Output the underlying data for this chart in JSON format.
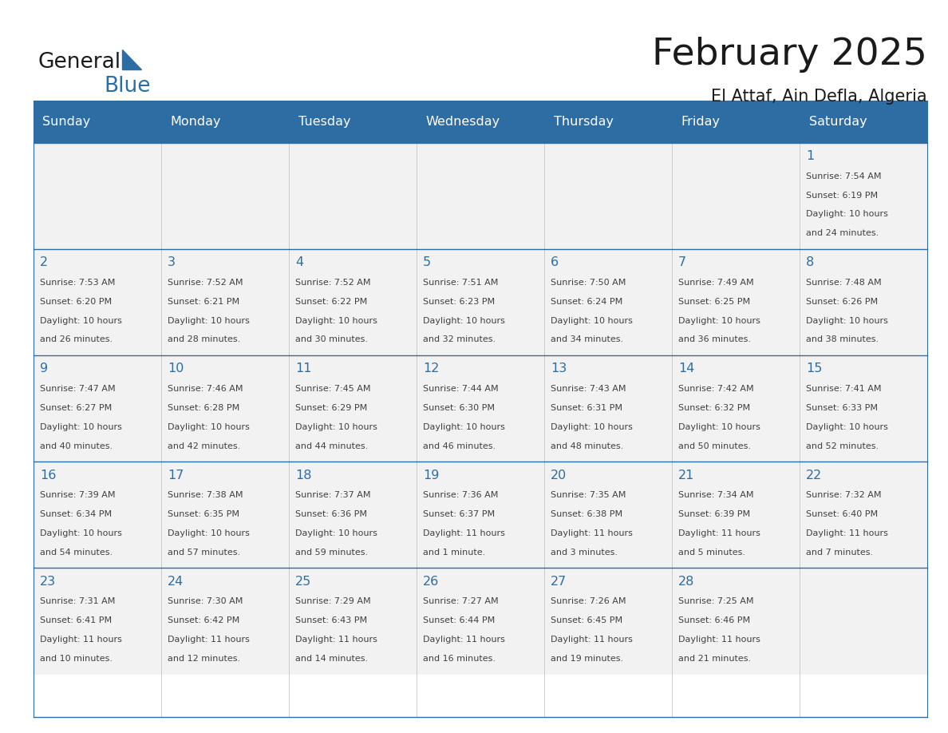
{
  "title": "February 2025",
  "subtitle": "El Attaf, Ain Defla, Algeria",
  "header_bg": "#2E6DA4",
  "header_text_color": "#FFFFFF",
  "day_number_color": "#2E6DA4",
  "info_text_color": "#404040",
  "border_color": "#2E6DA4",
  "days_of_week": [
    "Sunday",
    "Monday",
    "Tuesday",
    "Wednesday",
    "Thursday",
    "Friday",
    "Saturday"
  ],
  "weeks": [
    [
      {
        "day": null,
        "sunrise": null,
        "sunset": null,
        "daylight_line1": null,
        "daylight_line2": null
      },
      {
        "day": null,
        "sunrise": null,
        "sunset": null,
        "daylight_line1": null,
        "daylight_line2": null
      },
      {
        "day": null,
        "sunrise": null,
        "sunset": null,
        "daylight_line1": null,
        "daylight_line2": null
      },
      {
        "day": null,
        "sunrise": null,
        "sunset": null,
        "daylight_line1": null,
        "daylight_line2": null
      },
      {
        "day": null,
        "sunrise": null,
        "sunset": null,
        "daylight_line1": null,
        "daylight_line2": null
      },
      {
        "day": null,
        "sunrise": null,
        "sunset": null,
        "daylight_line1": null,
        "daylight_line2": null
      },
      {
        "day": 1,
        "sunrise": "7:54 AM",
        "sunset": "6:19 PM",
        "daylight_line1": "Daylight: 10 hours",
        "daylight_line2": "and 24 minutes."
      }
    ],
    [
      {
        "day": 2,
        "sunrise": "7:53 AM",
        "sunset": "6:20 PM",
        "daylight_line1": "Daylight: 10 hours",
        "daylight_line2": "and 26 minutes."
      },
      {
        "day": 3,
        "sunrise": "7:52 AM",
        "sunset": "6:21 PM",
        "daylight_line1": "Daylight: 10 hours",
        "daylight_line2": "and 28 minutes."
      },
      {
        "day": 4,
        "sunrise": "7:52 AM",
        "sunset": "6:22 PM",
        "daylight_line1": "Daylight: 10 hours",
        "daylight_line2": "and 30 minutes."
      },
      {
        "day": 5,
        "sunrise": "7:51 AM",
        "sunset": "6:23 PM",
        "daylight_line1": "Daylight: 10 hours",
        "daylight_line2": "and 32 minutes."
      },
      {
        "day": 6,
        "sunrise": "7:50 AM",
        "sunset": "6:24 PM",
        "daylight_line1": "Daylight: 10 hours",
        "daylight_line2": "and 34 minutes."
      },
      {
        "day": 7,
        "sunrise": "7:49 AM",
        "sunset": "6:25 PM",
        "daylight_line1": "Daylight: 10 hours",
        "daylight_line2": "and 36 minutes."
      },
      {
        "day": 8,
        "sunrise": "7:48 AM",
        "sunset": "6:26 PM",
        "daylight_line1": "Daylight: 10 hours",
        "daylight_line2": "and 38 minutes."
      }
    ],
    [
      {
        "day": 9,
        "sunrise": "7:47 AM",
        "sunset": "6:27 PM",
        "daylight_line1": "Daylight: 10 hours",
        "daylight_line2": "and 40 minutes."
      },
      {
        "day": 10,
        "sunrise": "7:46 AM",
        "sunset": "6:28 PM",
        "daylight_line1": "Daylight: 10 hours",
        "daylight_line2": "and 42 minutes."
      },
      {
        "day": 11,
        "sunrise": "7:45 AM",
        "sunset": "6:29 PM",
        "daylight_line1": "Daylight: 10 hours",
        "daylight_line2": "and 44 minutes."
      },
      {
        "day": 12,
        "sunrise": "7:44 AM",
        "sunset": "6:30 PM",
        "daylight_line1": "Daylight: 10 hours",
        "daylight_line2": "and 46 minutes."
      },
      {
        "day": 13,
        "sunrise": "7:43 AM",
        "sunset": "6:31 PM",
        "daylight_line1": "Daylight: 10 hours",
        "daylight_line2": "and 48 minutes."
      },
      {
        "day": 14,
        "sunrise": "7:42 AM",
        "sunset": "6:32 PM",
        "daylight_line1": "Daylight: 10 hours",
        "daylight_line2": "and 50 minutes."
      },
      {
        "day": 15,
        "sunrise": "7:41 AM",
        "sunset": "6:33 PM",
        "daylight_line1": "Daylight: 10 hours",
        "daylight_line2": "and 52 minutes."
      }
    ],
    [
      {
        "day": 16,
        "sunrise": "7:39 AM",
        "sunset": "6:34 PM",
        "daylight_line1": "Daylight: 10 hours",
        "daylight_line2": "and 54 minutes."
      },
      {
        "day": 17,
        "sunrise": "7:38 AM",
        "sunset": "6:35 PM",
        "daylight_line1": "Daylight: 10 hours",
        "daylight_line2": "and 57 minutes."
      },
      {
        "day": 18,
        "sunrise": "7:37 AM",
        "sunset": "6:36 PM",
        "daylight_line1": "Daylight: 10 hours",
        "daylight_line2": "and 59 minutes."
      },
      {
        "day": 19,
        "sunrise": "7:36 AM",
        "sunset": "6:37 PM",
        "daylight_line1": "Daylight: 11 hours",
        "daylight_line2": "and 1 minute."
      },
      {
        "day": 20,
        "sunrise": "7:35 AM",
        "sunset": "6:38 PM",
        "daylight_line1": "Daylight: 11 hours",
        "daylight_line2": "and 3 minutes."
      },
      {
        "day": 21,
        "sunrise": "7:34 AM",
        "sunset": "6:39 PM",
        "daylight_line1": "Daylight: 11 hours",
        "daylight_line2": "and 5 minutes."
      },
      {
        "day": 22,
        "sunrise": "7:32 AM",
        "sunset": "6:40 PM",
        "daylight_line1": "Daylight: 11 hours",
        "daylight_line2": "and 7 minutes."
      }
    ],
    [
      {
        "day": 23,
        "sunrise": "7:31 AM",
        "sunset": "6:41 PM",
        "daylight_line1": "Daylight: 11 hours",
        "daylight_line2": "and 10 minutes."
      },
      {
        "day": 24,
        "sunrise": "7:30 AM",
        "sunset": "6:42 PM",
        "daylight_line1": "Daylight: 11 hours",
        "daylight_line2": "and 12 minutes."
      },
      {
        "day": 25,
        "sunrise": "7:29 AM",
        "sunset": "6:43 PM",
        "daylight_line1": "Daylight: 11 hours",
        "daylight_line2": "and 14 minutes."
      },
      {
        "day": 26,
        "sunrise": "7:27 AM",
        "sunset": "6:44 PM",
        "daylight_line1": "Daylight: 11 hours",
        "daylight_line2": "and 16 minutes."
      },
      {
        "day": 27,
        "sunrise": "7:26 AM",
        "sunset": "6:45 PM",
        "daylight_line1": "Daylight: 11 hours",
        "daylight_line2": "and 19 minutes."
      },
      {
        "day": 28,
        "sunrise": "7:25 AM",
        "sunset": "6:46 PM",
        "daylight_line1": "Daylight: 11 hours",
        "daylight_line2": "and 21 minutes."
      },
      {
        "day": null,
        "sunrise": null,
        "sunset": null,
        "daylight_line1": null,
        "daylight_line2": null
      }
    ]
  ],
  "logo_text_general": "General",
  "logo_text_blue": "Blue",
  "logo_color_general": "#1a1a1a",
  "logo_color_blue": "#2E6DA4",
  "logo_triangle_color": "#2E6DA4"
}
